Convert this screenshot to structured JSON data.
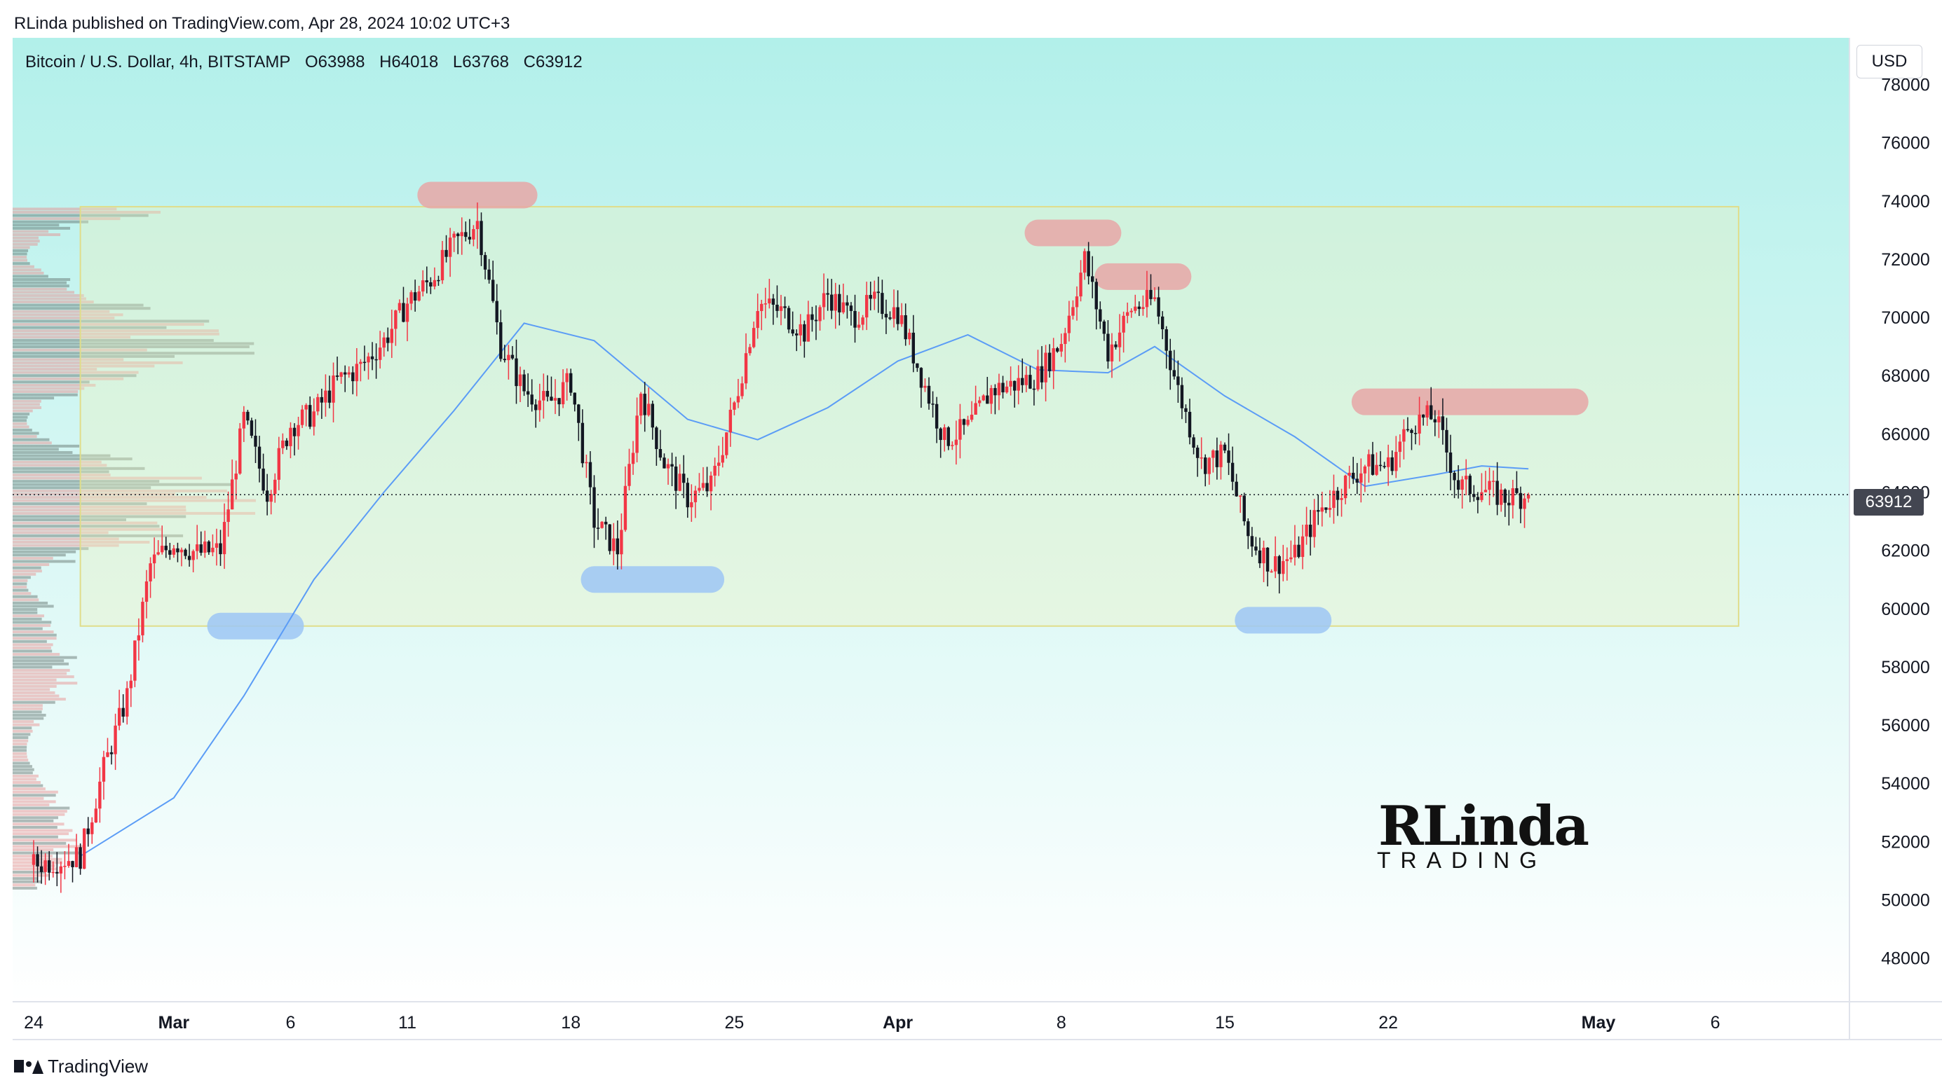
{
  "header": {
    "publisher_line": "RLinda published on TradingView.com, Apr 28, 2024 10:02 UTC+3"
  },
  "legend": {
    "symbol": "Bitcoin / U.S. Dollar, 4h, BITSTAMP",
    "open": "O63988",
    "high": "H64018",
    "low": "L63768",
    "close": "C63912"
  },
  "currency_button": "USD",
  "last_price_label": "63912",
  "brand": {
    "line1": "RLinda",
    "line2": "TRADING"
  },
  "footer": {
    "logo_icon": "tradingview-logo-icon",
    "label": "TradingView"
  },
  "colors": {
    "up": "#f23645",
    "down": "#131722",
    "ma": "#5b9cf6",
    "resistance": "#e8a7a7",
    "support": "#9ec7f5",
    "range_box": "#e0dd8a",
    "bg_top": "#b2f0ea",
    "bg_bottom": "#ffffff"
  },
  "chart_data": {
    "type": "candlestick",
    "timeframe": "4h",
    "x_tick_labels": [
      "24",
      "Mar",
      "6",
      "11",
      "18",
      "25",
      "Apr",
      "8",
      "15",
      "22",
      "May",
      "6"
    ],
    "y_tick_labels": [
      "78000",
      "76000",
      "74000",
      "72000",
      "70000",
      "68000",
      "66000",
      "64000",
      "62000",
      "60000",
      "58000",
      "56000",
      "54000",
      "52000",
      "50000",
      "48000"
    ],
    "ylim": [
      46500,
      79600
    ],
    "last_price": 63912,
    "range_box": {
      "from": "Feb 26",
      "to": "May 7",
      "high": 73800,
      "low": 59400
    },
    "resistance_zones": [
      {
        "from": "Mar 12",
        "to": "Mar 16",
        "price": 74200
      },
      {
        "from": "Apr 7",
        "to": "Apr 10",
        "price": 72900
      },
      {
        "from": "Apr 10",
        "to": "Apr 13",
        "price": 71400
      },
      {
        "from": "Apr 21",
        "to": "Apr 30",
        "price": 67100
      }
    ],
    "support_zones": [
      {
        "from": "Mar 3",
        "to": "Mar 6",
        "price": 59400
      },
      {
        "from": "Mar 19",
        "to": "Mar 24",
        "price": 61000
      },
      {
        "from": "Apr 16",
        "to": "Apr 19",
        "price": 59600
      }
    ],
    "path_points": [
      [
        "Feb 24",
        51200
      ],
      [
        "Feb 26",
        51500
      ],
      [
        "Feb 27",
        54500
      ],
      [
        "Feb 28",
        57000
      ],
      [
        "Feb 29",
        61500
      ],
      [
        "Mar 1",
        62300
      ],
      [
        "Mar 2",
        61900
      ],
      [
        "Mar 3",
        62000
      ],
      [
        "Mar 4",
        66500
      ],
      [
        "Mar 5",
        64000
      ],
      [
        "Mar 6",
        66300
      ],
      [
        "Mar 7",
        66700
      ],
      [
        "Mar 8",
        67800
      ],
      [
        "Mar 9",
        68300
      ],
      [
        "Mar 10",
        69200
      ],
      [
        "Mar 11",
        70500
      ],
      [
        "Mar 12",
        71300
      ],
      [
        "Mar 13",
        72500
      ],
      [
        "Mar 14",
        73300
      ],
      [
        "Mar 15",
        69000
      ],
      [
        "Mar 16",
        67500
      ],
      [
        "Mar 17",
        67000
      ],
      [
        "Mar 18",
        67800
      ],
      [
        "Mar 19",
        63000
      ],
      [
        "Mar 20",
        62000
      ],
      [
        "Mar 21",
        67500
      ],
      [
        "Mar 22",
        65000
      ],
      [
        "Mar 23",
        63800
      ],
      [
        "Mar 24",
        64200
      ],
      [
        "Mar 25",
        67000
      ],
      [
        "Mar 26",
        70500
      ],
      [
        "Mar 27",
        70200
      ],
      [
        "Mar 28",
        69500
      ],
      [
        "Mar 29",
        70800
      ],
      [
        "Mar 30",
        70000
      ],
      [
        "Mar 31",
        70500
      ],
      [
        "Apr 1",
        70200
      ],
      [
        "Apr 2",
        68000
      ],
      [
        "Apr 3",
        65800
      ],
      [
        "Apr 4",
        66200
      ],
      [
        "Apr 5",
        67500
      ],
      [
        "Apr 6",
        67700
      ],
      [
        "Apr 7",
        68000
      ],
      [
        "Apr 8",
        69200
      ],
      [
        "Apr 9",
        72000
      ],
      [
        "Apr 10",
        68800
      ],
      [
        "Apr 11",
        70300
      ],
      [
        "Apr 12",
        70600
      ],
      [
        "Apr 13",
        67500
      ],
      [
        "Apr 14",
        65000
      ],
      [
        "Apr 15",
        65300
      ],
      [
        "Apr 16",
        62500
      ],
      [
        "Apr 17",
        61500
      ],
      [
        "Apr 18",
        61800
      ],
      [
        "Apr 19",
        63300
      ],
      [
        "Apr 20",
        64200
      ],
      [
        "Apr 21",
        64900
      ],
      [
        "Apr 22",
        64900
      ],
      [
        "Apr 23",
        66400
      ],
      [
        "Apr 24",
        66600
      ],
      [
        "Apr 25",
        64200
      ],
      [
        "Apr 26",
        64100
      ],
      [
        "Apr 27",
        63800
      ],
      [
        "Apr 28",
        63912
      ]
    ],
    "moving_average": [
      [
        "Feb 26",
        51500
      ],
      [
        "Mar 1",
        53500
      ],
      [
        "Mar 4",
        57000
      ],
      [
        "Mar 7",
        61000
      ],
      [
        "Mar 10",
        64000
      ],
      [
        "Mar 13",
        66800
      ],
      [
        "Mar 16",
        69800
      ],
      [
        "Mar 19",
        69200
      ],
      [
        "Mar 23",
        66500
      ],
      [
        "Mar 26",
        65800
      ],
      [
        "Mar 29",
        66900
      ],
      [
        "Apr 1",
        68500
      ],
      [
        "Apr 4",
        69400
      ],
      [
        "Apr 7",
        68200
      ],
      [
        "Apr 10",
        68100
      ],
      [
        "Apr 12",
        69000
      ],
      [
        "Apr 15",
        67300
      ],
      [
        "Apr 18",
        65900
      ],
      [
        "Apr 21",
        64200
      ],
      [
        "Apr 24",
        64600
      ],
      [
        "Apr 26",
        64900
      ],
      [
        "Apr 28",
        64800
      ]
    ]
  }
}
